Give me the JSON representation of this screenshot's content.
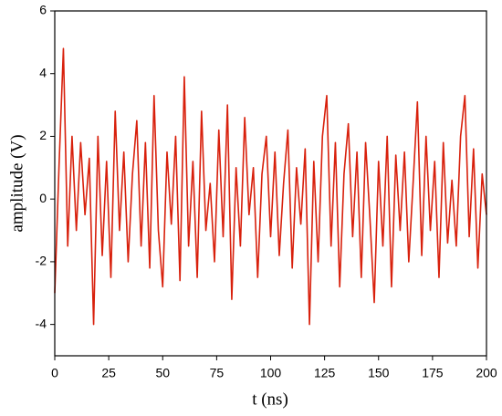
{
  "chart_data": {
    "type": "line",
    "xlabel": "t (ns)",
    "ylabel": "amplitude (V)",
    "xlim": [
      0,
      200
    ],
    "xticks": [
      0,
      25,
      50,
      75,
      100,
      125,
      150,
      175,
      200
    ],
    "ylim": [
      -5,
      6
    ],
    "yticks": [
      -4,
      -2,
      0,
      2,
      4,
      6
    ],
    "grid": false,
    "x": [
      0,
      2,
      4,
      6,
      8,
      10,
      12,
      14,
      16,
      18,
      20,
      22,
      24,
      26,
      28,
      30,
      32,
      34,
      36,
      38,
      40,
      42,
      44,
      46,
      48,
      50,
      52,
      54,
      56,
      58,
      60,
      62,
      64,
      66,
      68,
      70,
      72,
      74,
      76,
      78,
      80,
      82,
      84,
      86,
      88,
      90,
      92,
      94,
      96,
      98,
      100,
      102,
      104,
      106,
      108,
      110,
      112,
      114,
      116,
      118,
      120,
      122,
      124,
      126,
      128,
      130,
      132,
      134,
      136,
      138,
      140,
      142,
      144,
      146,
      148,
      150,
      152,
      154,
      156,
      158,
      160,
      162,
      164,
      166,
      168,
      170,
      172,
      174,
      176,
      178,
      180,
      182,
      184,
      186,
      188,
      190,
      192,
      194,
      196,
      198,
      200
    ],
    "series": [
      {
        "color": "#d8200c",
        "values": [
          -3.0,
          1.1,
          4.8,
          -1.5,
          2.0,
          -1.0,
          1.8,
          -0.5,
          1.3,
          -4.0,
          2.0,
          -1.8,
          1.2,
          -2.5,
          2.8,
          -1.0,
          1.5,
          -2.0,
          0.8,
          2.5,
          -1.5,
          1.8,
          -2.2,
          3.3,
          -1.0,
          -2.8,
          1.5,
          -0.8,
          2.0,
          -2.6,
          3.9,
          -1.5,
          1.2,
          -2.5,
          2.8,
          -1.0,
          0.5,
          -2.0,
          2.2,
          -1.2,
          3.0,
          -3.2,
          1.0,
          -1.5,
          2.6,
          -0.5,
          1.0,
          -2.5,
          0.8,
          2.0,
          -1.2,
          1.5,
          -1.8,
          0.5,
          2.2,
          -2.2,
          1.0,
          -0.8,
          1.6,
          -4.0,
          1.2,
          -2.0,
          2.0,
          3.3,
          -1.5,
          1.8,
          -2.8,
          0.8,
          2.4,
          -1.2,
          1.5,
          -2.5,
          1.8,
          -0.6,
          -3.3,
          1.2,
          -1.5,
          2.0,
          -2.8,
          1.4,
          -1.0,
          1.5,
          -2.0,
          0.5,
          3.1,
          -1.8,
          2.0,
          -1.0,
          1.2,
          -2.5,
          1.8,
          -1.4,
          0.6,
          -1.5,
          2.0,
          3.3,
          -1.2,
          1.6,
          -2.2,
          0.8,
          -0.5
        ]
      }
    ]
  }
}
